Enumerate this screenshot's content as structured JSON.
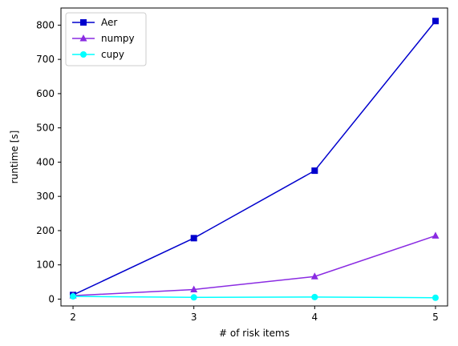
{
  "chart_data": {
    "type": "line",
    "title": "",
    "xlabel": "# of risk items",
    "ylabel": "runtime [s]",
    "x": [
      2,
      3,
      4,
      5
    ],
    "xticks": [
      2,
      3,
      4,
      5
    ],
    "yticks": [
      0,
      100,
      200,
      300,
      400,
      500,
      600,
      700,
      800
    ],
    "xlim": [
      1.9,
      5.1
    ],
    "ylim": [
      -20,
      850
    ],
    "grid": false,
    "legend_position": "top-left",
    "series": [
      {
        "name": "Aer",
        "marker": "square",
        "color": "#0000cd",
        "values": [
          12,
          178,
          375,
          812
        ]
      },
      {
        "name": "numpy",
        "marker": "triangle",
        "color": "#8a2be2",
        "values": [
          10,
          28,
          66,
          185
        ]
      },
      {
        "name": "cupy",
        "marker": "circle",
        "color": "#00ffff",
        "values": [
          8,
          5,
          6,
          4
        ]
      }
    ]
  }
}
